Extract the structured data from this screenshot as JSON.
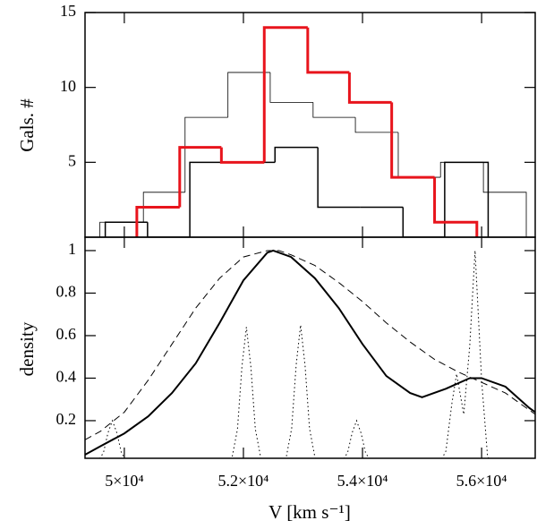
{
  "chart_data": [
    {
      "type": "histogram",
      "ylabel": "Gals. #",
      "xlim": [
        49340,
        56900
      ],
      "ylim": [
        0,
        15
      ],
      "yticks": [
        5,
        10,
        15
      ],
      "xticks": [
        50000,
        52000,
        54000,
        56000
      ],
      "series": [
        {
          "color": "#000000",
          "width": 0.8,
          "bins": [
            49590,
            50320,
            51020,
            51740,
            52450,
            53170,
            53880,
            54600,
            55310,
            56030,
            56750
          ],
          "values": [
            1,
            3,
            8,
            11,
            9,
            8,
            7,
            4,
            5,
            3
          ]
        },
        {
          "color": "#000000",
          "width": 1.5,
          "bins": [
            49680,
            50390,
            51100,
            51820,
            52530,
            53250,
            53960,
            54680,
            55380,
            56110
          ],
          "values": [
            1,
            0,
            5,
            5,
            6,
            2,
            2,
            0,
            5
          ]
        },
        {
          "color": "#e8141c",
          "width": 3,
          "bins": [
            50210,
            50930,
            51630,
            52350,
            53080,
            53780,
            54490,
            55210,
            55920
          ],
          "values": [
            2,
            6,
            5,
            14,
            11,
            9,
            4,
            1
          ]
        }
      ]
    },
    {
      "type": "line",
      "ylabel": "density",
      "xlabel": "V [km s⁻¹]",
      "xlim": [
        49340,
        56900
      ],
      "ylim": [
        0.023,
        1.063
      ],
      "yticks": [
        0.2,
        0.4,
        0.6,
        0.8,
        1
      ],
      "xticks": [
        {
          "value": 50000,
          "label": "5×10⁴"
        },
        {
          "value": 52000,
          "label": "5.2×10⁴"
        },
        {
          "value": 54000,
          "label": "5.4×10⁴"
        },
        {
          "value": 56000,
          "label": "5.6×10⁴"
        }
      ],
      "series": [
        {
          "color": "#000000",
          "dash": "solid",
          "width": 2,
          "x": [
            49340,
            49600,
            50000,
            50400,
            50800,
            51200,
            51600,
            52000,
            52400,
            52500,
            52800,
            53200,
            53600,
            54000,
            54400,
            54800,
            55000,
            55400,
            55800,
            56000,
            56400,
            56800,
            56900
          ],
          "values": [
            0.04,
            0.08,
            0.14,
            0.22,
            0.33,
            0.47,
            0.66,
            0.86,
            0.99,
            1.0,
            0.97,
            0.87,
            0.73,
            0.56,
            0.41,
            0.33,
            0.31,
            0.35,
            0.4,
            0.4,
            0.36,
            0.26,
            0.24
          ]
        },
        {
          "color": "#000000",
          "dash": "dashed",
          "width": 1,
          "x": [
            49340,
            49600,
            50000,
            50400,
            50800,
            51200,
            51600,
            52000,
            52400,
            52600,
            52800,
            53200,
            53600,
            54000,
            54400,
            54800,
            55200,
            55600,
            56000,
            56400,
            56900
          ],
          "values": [
            0.11,
            0.15,
            0.24,
            0.39,
            0.56,
            0.73,
            0.87,
            0.97,
            1.0,
            1.0,
            0.98,
            0.93,
            0.85,
            0.76,
            0.66,
            0.57,
            0.49,
            0.43,
            0.38,
            0.33,
            0.23
          ]
        },
        {
          "color": "#000000",
          "dash": "dotted",
          "width": 1,
          "x": [
            49550,
            49650,
            49725,
            49800,
            49875,
            49950,
            50050,
            51000,
            51800,
            51900,
            51975,
            52050,
            52125,
            52200,
            52300,
            52500,
            52710,
            52810,
            52885,
            52960,
            53035,
            53110,
            53210,
            53400,
            53650,
            53750,
            53825,
            53900,
            53975,
            54050,
            54150,
            54700,
            55300,
            55400,
            55500,
            55580,
            55700,
            55800,
            55890,
            56000,
            56100,
            56200
          ],
          "values": [
            0.004,
            0.05,
            0.142,
            0.2,
            0.142,
            0.05,
            0.004,
            null,
            0.013,
            0.16,
            0.454,
            0.64,
            0.454,
            0.16,
            0.013,
            null,
            0.014,
            0.163,
            0.46,
            0.65,
            0.46,
            0.163,
            0.014,
            null,
            0.004,
            0.05,
            0.142,
            0.2,
            0.142,
            0.05,
            0.004,
            null,
            0.003,
            0.057,
            0.28,
            0.42,
            0.23,
            0.55,
            1.0,
            0.39,
            0.03,
            0.0
          ]
        }
      ]
    }
  ]
}
